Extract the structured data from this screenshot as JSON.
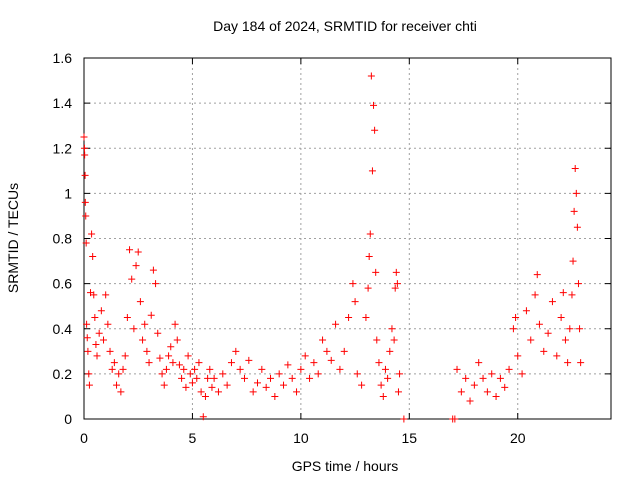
{
  "chart_data": {
    "type": "scatter",
    "title": "Day 184 of 2024, SRMTID for receiver chti",
    "xlabel": "GPS time / hours",
    "ylabel": "SRMTID / TECUs",
    "xlim": [
      0,
      24.3
    ],
    "ylim": [
      0,
      1.6
    ],
    "xticks": [
      0,
      5,
      10,
      15,
      20
    ],
    "xtick_labels": [
      "0",
      "5",
      "10",
      "15",
      "20"
    ],
    "yticks": [
      0,
      0.2,
      0.4,
      0.6,
      0.8,
      1.0,
      1.2,
      1.4,
      1.6
    ],
    "ytick_labels": [
      "0",
      "0.2",
      "0.4",
      "0.6",
      "0.8",
      "1",
      "1.2",
      "1.4",
      "1.6"
    ],
    "grid": true,
    "marker": "+",
    "color": "#ff0000",
    "series": [
      {
        "name": "SRMTID",
        "points": [
          [
            0.0,
            1.25
          ],
          [
            0.02,
            1.2
          ],
          [
            0.03,
            1.17
          ],
          [
            0.05,
            1.08
          ],
          [
            0.06,
            0.96
          ],
          [
            0.08,
            0.9
          ],
          [
            0.1,
            0.78
          ],
          [
            0.12,
            0.42
          ],
          [
            0.15,
            0.36
          ],
          [
            0.18,
            0.3
          ],
          [
            0.22,
            0.2
          ],
          [
            0.25,
            0.15
          ],
          [
            0.3,
            0.56
          ],
          [
            0.35,
            0.82
          ],
          [
            0.4,
            0.72
          ],
          [
            0.45,
            0.55
          ],
          [
            0.5,
            0.45
          ],
          [
            0.55,
            0.33
          ],
          [
            0.6,
            0.28
          ],
          [
            0.7,
            0.38
          ],
          [
            0.8,
            0.48
          ],
          [
            0.9,
            0.35
          ],
          [
            1.0,
            0.55
          ],
          [
            1.1,
            0.42
          ],
          [
            1.2,
            0.3
          ],
          [
            1.3,
            0.22
          ],
          [
            1.4,
            0.25
          ],
          [
            1.5,
            0.15
          ],
          [
            1.6,
            0.2
          ],
          [
            1.7,
            0.12
          ],
          [
            1.8,
            0.22
          ],
          [
            1.9,
            0.28
          ],
          [
            2.0,
            0.45
          ],
          [
            2.1,
            0.75
          ],
          [
            2.2,
            0.62
          ],
          [
            2.3,
            0.4
          ],
          [
            2.4,
            0.68
          ],
          [
            2.5,
            0.74
          ],
          [
            2.6,
            0.52
          ],
          [
            2.7,
            0.35
          ],
          [
            2.8,
            0.42
          ],
          [
            2.9,
            0.3
          ],
          [
            3.0,
            0.25
          ],
          [
            3.1,
            0.46
          ],
          [
            3.2,
            0.66
          ],
          [
            3.3,
            0.6
          ],
          [
            3.4,
            0.38
          ],
          [
            3.5,
            0.27
          ],
          [
            3.6,
            0.2
          ],
          [
            3.7,
            0.15
          ],
          [
            3.8,
            0.22
          ],
          [
            3.9,
            0.28
          ],
          [
            4.0,
            0.32
          ],
          [
            4.1,
            0.25
          ],
          [
            4.2,
            0.42
          ],
          [
            4.3,
            0.35
          ],
          [
            4.4,
            0.24
          ],
          [
            4.5,
            0.18
          ],
          [
            4.6,
            0.22
          ],
          [
            4.7,
            0.14
          ],
          [
            4.8,
            0.28
          ],
          [
            4.9,
            0.2
          ],
          [
            5.0,
            0.16
          ],
          [
            5.1,
            0.22
          ],
          [
            5.2,
            0.18
          ],
          [
            5.3,
            0.25
          ],
          [
            5.4,
            0.12
          ],
          [
            5.5,
            0.01
          ],
          [
            5.6,
            0.1
          ],
          [
            5.7,
            0.18
          ],
          [
            5.8,
            0.22
          ],
          [
            5.9,
            0.14
          ],
          [
            6.0,
            0.18
          ],
          [
            6.2,
            0.12
          ],
          [
            6.4,
            0.2
          ],
          [
            6.6,
            0.15
          ],
          [
            6.8,
            0.25
          ],
          [
            7.0,
            0.3
          ],
          [
            7.2,
            0.22
          ],
          [
            7.4,
            0.18
          ],
          [
            7.6,
            0.26
          ],
          [
            7.8,
            0.12
          ],
          [
            8.0,
            0.16
          ],
          [
            8.2,
            0.22
          ],
          [
            8.4,
            0.14
          ],
          [
            8.6,
            0.18
          ],
          [
            8.8,
            0.1
          ],
          [
            9.0,
            0.2
          ],
          [
            9.2,
            0.15
          ],
          [
            9.4,
            0.24
          ],
          [
            9.6,
            0.18
          ],
          [
            9.8,
            0.12
          ],
          [
            10.0,
            0.22
          ],
          [
            10.2,
            0.28
          ],
          [
            10.4,
            0.18
          ],
          [
            10.6,
            0.25
          ],
          [
            10.8,
            0.2
          ],
          [
            11.0,
            0.35
          ],
          [
            11.2,
            0.3
          ],
          [
            11.4,
            0.26
          ],
          [
            11.6,
            0.42
          ],
          [
            11.8,
            0.22
          ],
          [
            12.0,
            0.3
          ],
          [
            12.2,
            0.45
          ],
          [
            12.4,
            0.6
          ],
          [
            12.5,
            0.52
          ],
          [
            12.6,
            0.2
          ],
          [
            12.8,
            0.15
          ],
          [
            13.0,
            0.45
          ],
          [
            13.1,
            0.58
          ],
          [
            13.15,
            0.72
          ],
          [
            13.2,
            0.82
          ],
          [
            13.25,
            1.52
          ],
          [
            13.3,
            1.1
          ],
          [
            13.35,
            1.39
          ],
          [
            13.4,
            1.28
          ],
          [
            13.45,
            0.65
          ],
          [
            13.5,
            0.35
          ],
          [
            13.6,
            0.25
          ],
          [
            13.7,
            0.15
          ],
          [
            13.8,
            0.1
          ],
          [
            13.9,
            0.22
          ],
          [
            14.0,
            0.18
          ],
          [
            14.1,
            0.3
          ],
          [
            14.2,
            0.4
          ],
          [
            14.3,
            0.35
          ],
          [
            14.35,
            0.58
          ],
          [
            14.4,
            0.65
          ],
          [
            14.45,
            0.6
          ],
          [
            14.5,
            0.12
          ],
          [
            14.55,
            0.2
          ],
          [
            14.75,
            0.0
          ],
          [
            17.0,
            0.0
          ],
          [
            17.1,
            0.0
          ],
          [
            17.2,
            0.22
          ],
          [
            17.4,
            0.12
          ],
          [
            17.6,
            0.18
          ],
          [
            17.8,
            0.08
          ],
          [
            18.0,
            0.15
          ],
          [
            18.2,
            0.25
          ],
          [
            18.4,
            0.18
          ],
          [
            18.6,
            0.12
          ],
          [
            18.8,
            0.2
          ],
          [
            19.0,
            0.1
          ],
          [
            19.2,
            0.18
          ],
          [
            19.4,
            0.14
          ],
          [
            19.6,
            0.22
          ],
          [
            19.8,
            0.4
          ],
          [
            19.9,
            0.45
          ],
          [
            20.0,
            0.28
          ],
          [
            20.2,
            0.2
          ],
          [
            20.4,
            0.48
          ],
          [
            20.6,
            0.35
          ],
          [
            20.8,
            0.55
          ],
          [
            20.9,
            0.64
          ],
          [
            21.0,
            0.42
          ],
          [
            21.2,
            0.3
          ],
          [
            21.4,
            0.38
          ],
          [
            21.6,
            0.52
          ],
          [
            21.8,
            0.28
          ],
          [
            22.0,
            0.45
          ],
          [
            22.1,
            0.56
          ],
          [
            22.2,
            0.35
          ],
          [
            22.3,
            0.25
          ],
          [
            22.4,
            0.4
          ],
          [
            22.5,
            0.55
          ],
          [
            22.55,
            0.7
          ],
          [
            22.6,
            0.92
          ],
          [
            22.65,
            1.11
          ],
          [
            22.7,
            1.0
          ],
          [
            22.75,
            0.85
          ],
          [
            22.8,
            0.6
          ],
          [
            22.85,
            0.4
          ],
          [
            22.9,
            0.25
          ]
        ]
      }
    ]
  }
}
